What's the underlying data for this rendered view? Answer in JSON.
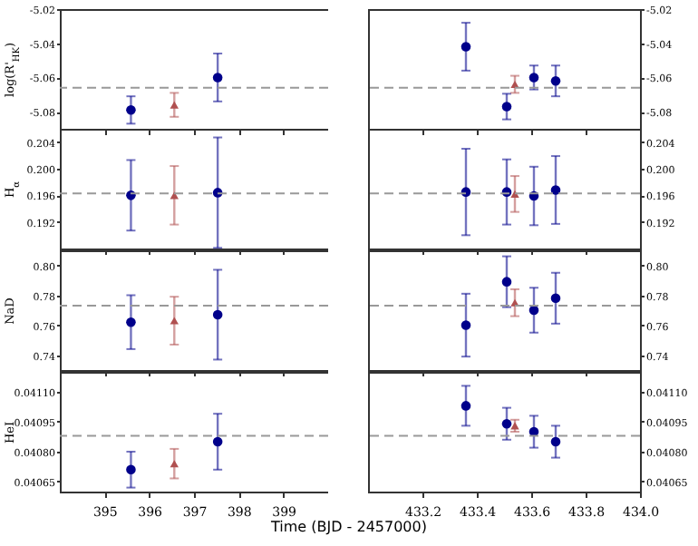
{
  "chart_data": [
    {
      "type": "scatter",
      "ylabel": "log(R'$_{HK}$)",
      "xlim": [
        394,
        400
      ],
      "xticks": [
        395,
        396,
        397,
        398,
        399
      ],
      "ylim": [
        -5.09,
        -5.02
      ],
      "yticks": [
        -5.08,
        -5.06,
        -5.04,
        -5.02
      ],
      "tick_labels": "y",
      "ref_lines": [
        {
          "axis": "y",
          "value": -5.066,
          "color": "#999999",
          "line_style": "dashed"
        }
      ],
      "series": [
        {
          "color": "#00008b",
          "marker": "circle",
          "x": [
            395.59,
            397.53
          ],
          "values": [
            -5.079,
            -5.06
          ],
          "errors": [
            0.008,
            0.014
          ]
        },
        {
          "color": "#b05050",
          "marker": "triangle",
          "x": [
            396.56
          ],
          "values": [
            -5.076
          ],
          "errors": [
            0.007
          ]
        }
      ]
    },
    {
      "type": "scatter",
      "xlim": [
        433,
        434
      ],
      "xticks": [
        433.2,
        433.4,
        433.6,
        433.8
      ],
      "ylim": [
        -5.09,
        -5.02
      ],
      "yticks": [
        -5.08,
        -5.06,
        -5.04,
        -5.02
      ],
      "tick_labels": "y",
      "ref_lines": [
        {
          "axis": "y",
          "value": -5.066,
          "color": "#999999",
          "line_style": "dashed"
        }
      ],
      "series": [
        {
          "color": "#00008b",
          "marker": "circle",
          "x": [
            433.36,
            433.51,
            433.61,
            433.69
          ],
          "values": [
            -5.042,
            -5.077,
            -5.06,
            -5.062
          ],
          "errors": [
            0.014,
            0.0075,
            0.007,
            0.009
          ]
        },
        {
          "color": "#b05050",
          "marker": "triangle",
          "x": [
            433.54
          ],
          "values": [
            -5.064
          ],
          "errors": [
            0.005
          ]
        }
      ]
    },
    {
      "type": "scatter",
      "ylabel": "H$_{α}$",
      "xlim": [
        394,
        400
      ],
      "xticks": [
        395,
        396,
        397,
        398,
        399
      ],
      "ylim": [
        0.188,
        0.206
      ],
      "yticks": [
        0.192,
        0.196,
        {
          "value": 0.2,
          "label": "0.200"
        },
        0.204
      ],
      "tick_labels": "y",
      "ref_lines": [
        {
          "axis": "y",
          "value": 0.1963,
          "color": "#999999",
          "line_style": "dashed"
        }
      ],
      "series": [
        {
          "color": "#00008b",
          "marker": "circle",
          "x": [
            395.59,
            397.53
          ],
          "values": [
            0.196,
            0.1964
          ],
          "errors": [
            0.0053,
            0.0083
          ]
        },
        {
          "color": "#b05050",
          "marker": "triangle",
          "x": [
            396.56
          ],
          "values": [
            0.196
          ],
          "errors": [
            0.0044
          ]
        }
      ]
    },
    {
      "type": "scatter",
      "xlim": [
        433,
        434
      ],
      "xticks": [
        433.2,
        433.4,
        433.6,
        433.8
      ],
      "ylim": [
        0.188,
        0.206
      ],
      "yticks": [
        0.192,
        0.196,
        {
          "value": 0.2,
          "label": "0.200"
        },
        0.204
      ],
      "tick_labels": "y",
      "ref_lines": [
        {
          "axis": "y",
          "value": 0.1963,
          "color": "#999999",
          "line_style": "dashed"
        }
      ],
      "series": [
        {
          "color": "#00008b",
          "marker": "circle",
          "x": [
            433.36,
            433.51,
            433.61,
            433.69
          ],
          "values": [
            0.1965,
            0.1965,
            0.1959,
            0.1968
          ],
          "errors": [
            0.0065,
            0.0049,
            0.0044,
            0.0051
          ]
        },
        {
          "color": "#b05050",
          "marker": "triangle",
          "x": [
            433.54
          ],
          "values": [
            0.1962
          ],
          "errors": [
            0.0027
          ]
        }
      ]
    },
    {
      "type": "scatter",
      "ylabel": "NaD",
      "xlim": [
        394,
        400
      ],
      "xticks": [
        395,
        396,
        397,
        398,
        399
      ],
      "ylim": [
        0.73,
        0.81
      ],
      "yticks": [
        0.74,
        0.76,
        0.78,
        {
          "value": 0.8,
          "label": "0.80"
        }
      ],
      "tick_labels": "y",
      "ref_lines": [
        {
          "axis": "y",
          "value": 0.773,
          "color": "#999999",
          "line_style": "dashed"
        }
      ],
      "series": [
        {
          "color": "#00008b",
          "marker": "circle",
          "x": [
            395.59,
            397.53
          ],
          "values": [
            0.762,
            0.767
          ],
          "errors": [
            0.018,
            0.03
          ]
        },
        {
          "color": "#b05050",
          "marker": "triangle",
          "x": [
            396.56
          ],
          "values": [
            0.763
          ],
          "errors": [
            0.016
          ]
        }
      ]
    },
    {
      "type": "scatter",
      "xlim": [
        433,
        434
      ],
      "xticks": [
        433.2,
        433.4,
        433.6,
        433.8
      ],
      "ylim": [
        0.73,
        0.81
      ],
      "yticks": [
        0.74,
        0.76,
        0.78,
        {
          "value": 0.8,
          "label": "0.80"
        }
      ],
      "tick_labels": "y",
      "ref_lines": [
        {
          "axis": "y",
          "value": 0.773,
          "color": "#999999",
          "line_style": "dashed"
        }
      ],
      "series": [
        {
          "color": "#00008b",
          "marker": "circle",
          "x": [
            433.36,
            433.51,
            433.61,
            433.69
          ],
          "values": [
            0.76,
            0.789,
            0.77,
            0.778
          ],
          "errors": [
            0.021,
            0.017,
            0.015,
            0.017
          ]
        },
        {
          "color": "#b05050",
          "marker": "triangle",
          "x": [
            433.54
          ],
          "values": [
            0.775
          ],
          "errors": [
            0.009
          ]
        }
      ]
    },
    {
      "type": "scatter",
      "ylabel": "HeI",
      "xlabel": "Time (BJD - 2457000)",
      "xlim": [
        394,
        400
      ],
      "xticks": [
        395,
        396,
        397,
        398,
        399
      ],
      "ylim": [
        0.0406,
        0.0412
      ],
      "yticks": [
        {
          "value": 0.04065,
          "label": "0.04065"
        },
        {
          "value": 0.0408,
          "label": "0.04080"
        },
        {
          "value": 0.04095,
          "label": "0.04095"
        },
        {
          "value": 0.0411,
          "label": "0.04110"
        }
      ],
      "ref_lines": [
        {
          "axis": "y",
          "value": 0.04088,
          "color": "#999999",
          "line_style": "dashed"
        }
      ],
      "series": [
        {
          "color": "#00008b",
          "marker": "circle",
          "x": [
            395.59,
            397.53
          ],
          "values": [
            0.04071,
            0.04085
          ],
          "errors": [
            9e-05,
            0.00014
          ]
        },
        {
          "color": "#b05050",
          "marker": "triangle",
          "x": [
            396.56
          ],
          "values": [
            0.04074
          ],
          "errors": [
            7.4e-05
          ]
        }
      ]
    },
    {
      "type": "scatter",
      "xlim": [
        433,
        434
      ],
      "xticks": [
        433.2,
        433.4,
        433.6,
        433.8,
        {
          "value": 434,
          "label": "434.0"
        }
      ],
      "ylim": [
        0.0406,
        0.0412
      ],
      "yticks": [
        {
          "value": 0.04065,
          "label": "0.04065"
        },
        {
          "value": 0.0408,
          "label": "0.04080"
        },
        {
          "value": 0.04095,
          "label": "0.04095"
        },
        {
          "value": 0.0411,
          "label": "0.04110"
        }
      ],
      "ref_lines": [
        {
          "axis": "y",
          "value": 0.04088,
          "color": "#999999",
          "line_style": "dashed"
        }
      ],
      "series": [
        {
          "color": "#00008b",
          "marker": "circle",
          "x": [
            433.36,
            433.51,
            433.61,
            433.69
          ],
          "values": [
            0.04103,
            0.04094,
            0.0409,
            0.04085
          ],
          "errors": [
            0.0001,
            8e-05,
            8e-05,
            8e-05
          ]
        },
        {
          "color": "#b05050",
          "marker": "triangle",
          "x": [
            433.54
          ],
          "values": [
            0.04093
          ],
          "errors": [
            3e-05
          ]
        }
      ]
    }
  ]
}
